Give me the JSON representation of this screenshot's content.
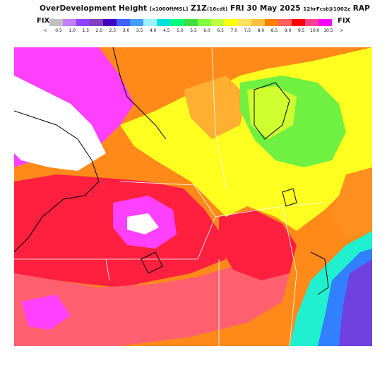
{
  "header": {
    "product": "OverDevelopment Height",
    "units": "[x1000ftMSL]",
    "run": "Z1Z",
    "run_sub": "(16cdt)",
    "valid": "FRI 30 May 2025",
    "forecast": "12hrFcst@1002z",
    "model": "RAP"
  },
  "legend": {
    "left_label": "FIX",
    "right_label": "FIX",
    "tick_labels": [
      "<",
      "0.5",
      "1.0",
      "1.5",
      "2.0",
      "2.5",
      "3.0",
      "3.5",
      "4.0",
      "4.5",
      "5.0",
      "5.5",
      "6.0",
      "6.5",
      "7.0",
      "7.5",
      "8.0",
      "8.5",
      "9.0",
      "9.5",
      "10.0",
      "10.5",
      ">"
    ],
    "colors": [
      "#c0c0c0",
      "#c080ff",
      "#9040ff",
      "#8040c0",
      "#4000c0",
      "#4060ff",
      "#40a0ff",
      "#a0f0ff",
      "#00e0e0",
      "#00ff80",
      "#40e040",
      "#80ff40",
      "#c0ff40",
      "#ffff00",
      "#ffe060",
      "#ffc040",
      "#ff8000",
      "#ff6060",
      "#ff0000",
      "#ff4090",
      "#ff00ff"
    ]
  },
  "map": {
    "description_colors": {
      "magenta": "#ff40ff",
      "red": "#ff2040",
      "salmon": "#ff6070",
      "orange": "#ff9020",
      "light_orange": "#ffb030",
      "yellow": "#ffff20",
      "yellow_green": "#d0ff30",
      "green": "#70f040",
      "aqua": "#20f0d0",
      "blue": "#3080ff",
      "purple": "#7040e0",
      "white": "#ffffff"
    }
  }
}
